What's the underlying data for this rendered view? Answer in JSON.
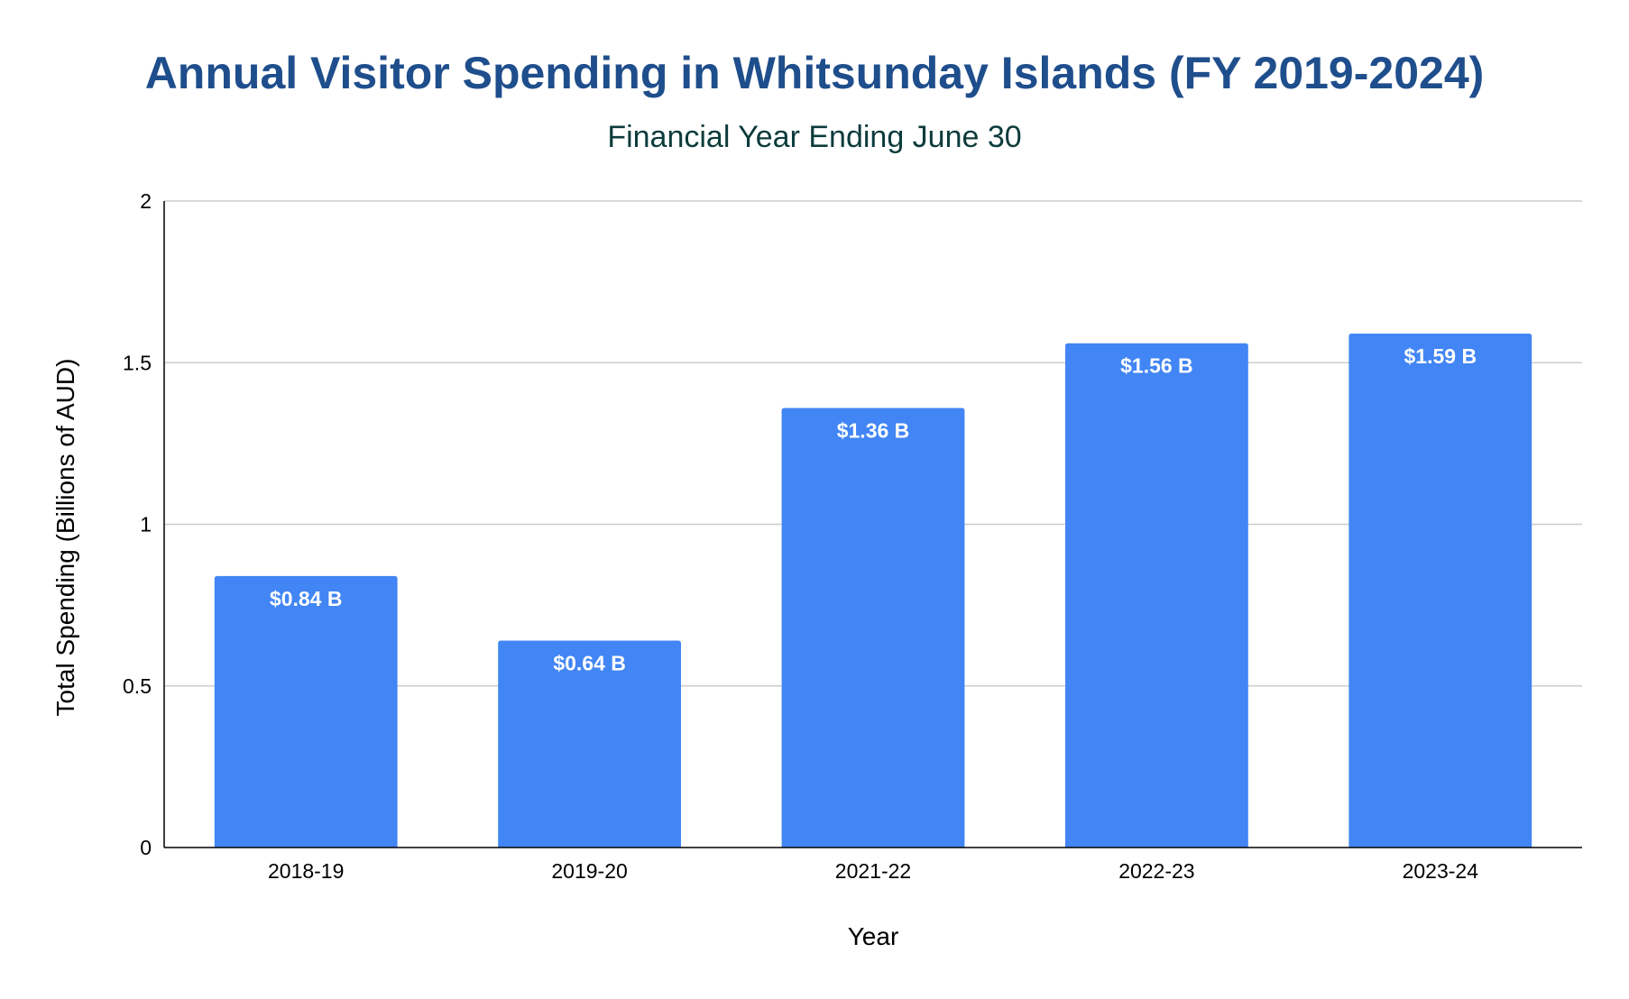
{
  "chart_data": {
    "type": "bar",
    "title": "Annual Visitor Spending in Whitsunday Islands (FY 2019-2024)",
    "subtitle": "Financial Year Ending June 30",
    "xlabel": "Year",
    "ylabel": "Total Spending (Billions of AUD)",
    "categories": [
      "2018-19",
      "2019-20",
      "2021-22",
      "2022-23",
      "2023-24"
    ],
    "values": [
      0.84,
      0.64,
      1.36,
      1.56,
      1.59
    ],
    "data_labels": [
      "$0.84 B",
      "$0.64 B",
      "$1.36 B",
      "$1.56 B",
      "$1.59 B"
    ],
    "ylim": [
      0,
      2
    ],
    "yticks": [
      {
        "value": 0,
        "label": "0"
      },
      {
        "value": 0.5,
        "label": "0.5"
      },
      {
        "value": 1,
        "label": "1"
      },
      {
        "value": 1.5,
        "label": "1.5"
      },
      {
        "value": 2,
        "label": "2"
      }
    ],
    "grid": true,
    "legend": "none",
    "colors": {
      "bar": "#4285f4",
      "title": "#1f4e8c",
      "subtitle": "#0d3b3b",
      "grid": "#cccccc",
      "axis": "#000000",
      "data_label": "#ffffff"
    }
  }
}
